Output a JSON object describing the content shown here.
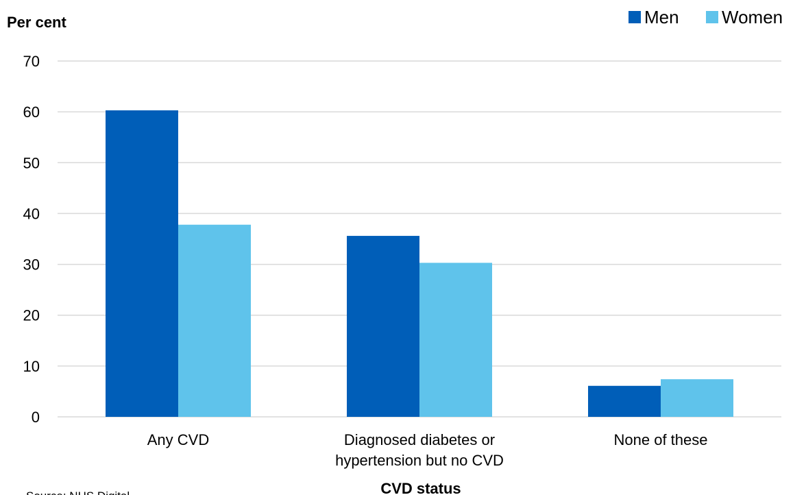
{
  "chart_data": {
    "type": "bar",
    "ylabel": "Per cent",
    "xlabel": "CVD status",
    "categories": [
      [
        "Any CVD"
      ],
      [
        "Diagnosed diabetes or",
        "hypertension but no CVD"
      ],
      [
        "None of these"
      ]
    ],
    "series": [
      {
        "name": "Men",
        "color": "#005EB8",
        "values": [
          60.3,
          35.6,
          6.1
        ]
      },
      {
        "name": "Women",
        "color": "#5FC3EB",
        "values": [
          37.8,
          30.3,
          7.4
        ]
      }
    ],
    "ylim": [
      0,
      70
    ],
    "yticks": [
      0,
      10,
      20,
      30,
      40,
      50,
      60,
      70
    ],
    "grid": true,
    "legend_position": "top-right"
  },
  "source": "Source: NHS  Digital"
}
